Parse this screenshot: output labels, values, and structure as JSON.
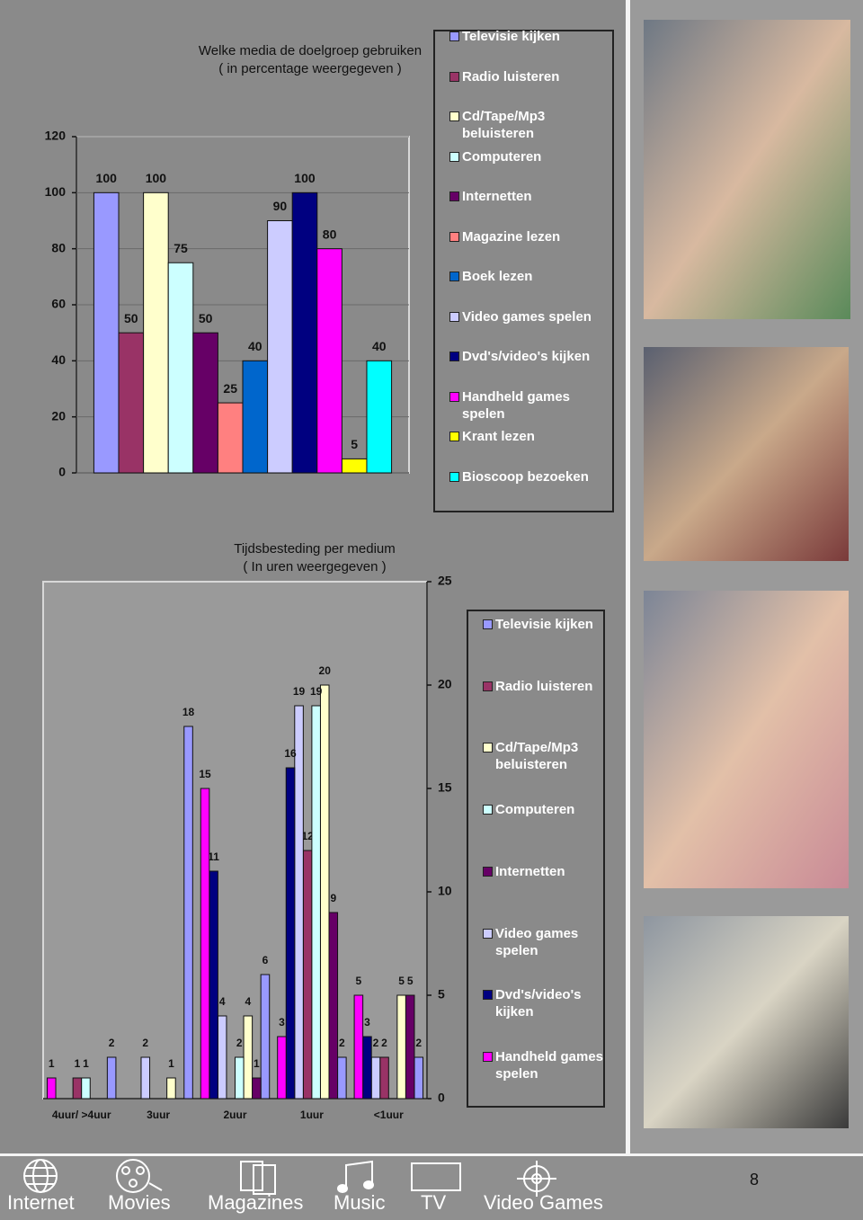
{
  "chart_data": [
    {
      "type": "bar",
      "title": "Welke media de doelgroep gebruiken",
      "subtitle": "( in percentage weergegeven )",
      "categories": [
        null
      ],
      "series": [
        {
          "name": "Televisie kijken",
          "color": "#9999ff",
          "values": [
            100
          ]
        },
        {
          "name": "Radio luisteren",
          "color": "#993366",
          "values": [
            50
          ]
        },
        {
          "name": "Cd/Tape/Mp3 beluisteren",
          "color": "#ffffcc",
          "values": [
            100
          ]
        },
        {
          "name": "Computeren",
          "color": "#ccffff",
          "values": [
            75
          ]
        },
        {
          "name": "Internetten",
          "color": "#660066",
          "values": [
            50
          ]
        },
        {
          "name": "Magazine lezen",
          "color": "#ff8080",
          "values": [
            25
          ]
        },
        {
          "name": "Boek lezen",
          "color": "#0066cc",
          "values": [
            40
          ]
        },
        {
          "name": "Video games spelen",
          "color": "#ccccff",
          "values": [
            90
          ]
        },
        {
          "name": "Dvd's/video's kijken",
          "color": "#000080",
          "values": [
            100
          ]
        },
        {
          "name": "Handheld games spelen",
          "color": "#ff00ff",
          "values": [
            80
          ]
        },
        {
          "name": "Krant lezen",
          "color": "#ffff00",
          "values": [
            5
          ]
        },
        {
          "name": "Bioscoop bezoeken",
          "color": "#00ffff",
          "values": [
            40
          ]
        }
      ],
      "ylim": [
        0,
        120
      ],
      "yticks": [
        0,
        20,
        40,
        60,
        80,
        100,
        120
      ],
      "grid": true
    },
    {
      "type": "bar",
      "title": "Tijdsbesteding per medium",
      "subtitle": "( In uren weergegeven )",
      "categories": [
        "4uur/ >4uur",
        "3uur",
        "2uur",
        "1uur",
        "<1uur"
      ],
      "series": [
        {
          "name": "Televisie kijken",
          "color": "#9999ff",
          "values": [
            2,
            18,
            6,
            2,
            2
          ]
        },
        {
          "name": "Radio luisteren",
          "color": "#993366",
          "values": [
            1,
            null,
            null,
            12,
            2
          ]
        },
        {
          "name": "Cd/Tape/Mp3 beluisteren",
          "color": "#ffffcc",
          "values": [
            null,
            1,
            4,
            20,
            5
          ]
        },
        {
          "name": "Computeren",
          "color": "#ccffff",
          "values": [
            1,
            null,
            2,
            19,
            null
          ]
        },
        {
          "name": "Internetten",
          "color": "#660066",
          "values": [
            null,
            null,
            1,
            9,
            5
          ]
        },
        {
          "name": "Video games spelen",
          "color": "#ccccff",
          "values": [
            null,
            2,
            4,
            19,
            2
          ]
        },
        {
          "name": "Dvd's/video's kijken",
          "color": "#000080",
          "values": [
            null,
            null,
            11,
            16,
            3
          ]
        },
        {
          "name": "Handheld games spelen",
          "color": "#ff00ff",
          "values": [
            1,
            null,
            15,
            3,
            5
          ]
        }
      ],
      "ylim": [
        0,
        25
      ],
      "yticks": [
        0,
        5,
        10,
        15,
        20,
        25
      ],
      "grid": false
    }
  ],
  "nav": [
    "Internet",
    "Movies",
    "Magazines",
    "Music",
    "TV",
    "Video Games"
  ],
  "page_number": "8"
}
